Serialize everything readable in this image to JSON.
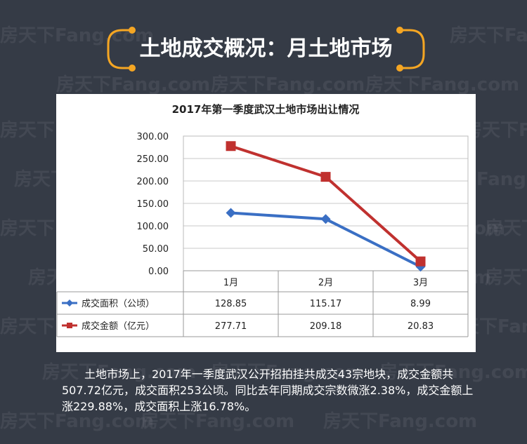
{
  "header": {
    "title": "土地成交概况：月土地市场"
  },
  "watermark": {
    "text": "房天下Fang.com"
  },
  "colors": {
    "background": "#353b46",
    "accent": "#f5a623",
    "area_series": "#3a6fc4",
    "amount_series": "#c0312f"
  },
  "chart_data": {
    "type": "line",
    "title": "2017年第一季度武汉土地市场出让情况",
    "categories": [
      "1月",
      "2月",
      "3月"
    ],
    "ylim": [
      0,
      300
    ],
    "yticks": [
      "0.00",
      "50.00",
      "100.00",
      "150.00",
      "200.00",
      "250.00",
      "300.00"
    ],
    "grid": true,
    "legend": "table-below",
    "series": [
      {
        "name": "成交面积（公顷）",
        "values": [
          128.85,
          115.17,
          8.99
        ],
        "labels": [
          "128.85",
          "115.17",
          "8.99"
        ],
        "color": "#3a6fc4",
        "marker": "diamond"
      },
      {
        "name": "成交金额（亿元）",
        "values": [
          277.71,
          209.18,
          20.83
        ],
        "labels": [
          "277.71",
          "209.18",
          "20.83"
        ],
        "color": "#c0312f",
        "marker": "square"
      }
    ]
  },
  "description": "土地市场上，2017年一季度武汉公开招拍挂共成交43宗地块，成交金额共507.72亿元，成交面积253公顷。同比去年同期成交宗数微涨2.38%，成交金额上涨229.88%，成交面积上涨16.78%。"
}
